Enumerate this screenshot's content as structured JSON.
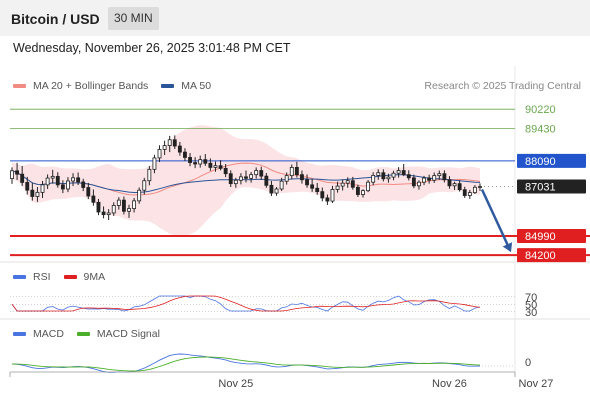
{
  "header": {
    "title": "Bitcoin / USD",
    "timeframe": "30 MIN"
  },
  "datetime": "Wednesday, November 26, 2025 3:01:48 PM CET",
  "credit": "Research © 2025 Trading Central",
  "legend_main": [
    {
      "label": "MA 20 + Bollinger Bands",
      "color": "#f28b82"
    },
    {
      "label": "MA 50",
      "color": "#2a5599"
    }
  ],
  "legend_rsi": [
    {
      "label": "RSI",
      "color": "#4a74e0"
    },
    {
      "label": "9MA",
      "color": "#e02020"
    }
  ],
  "legend_macd": [
    {
      "label": "MACD",
      "color": "#4a74e0"
    },
    {
      "label": "MACD Signal",
      "color": "#4caf2a"
    }
  ],
  "colors": {
    "green_level": "#6aa84f",
    "blue_level": "#2255cc",
    "red_level": "#e02020",
    "candle": "#222222",
    "bollinger": "#fadadd",
    "arrow": "#2f5a9e"
  },
  "chart_data": {
    "type": "candlestick",
    "price_range": [
      84000,
      90600
    ],
    "levels": [
      {
        "value": 90220,
        "label": "90220",
        "kind": "resistance"
      },
      {
        "value": 89430,
        "label": "89430",
        "kind": "resistance"
      },
      {
        "value": 88090,
        "label": "88090",
        "kind": "pivot"
      },
      {
        "value": 87031,
        "label": "87031",
        "kind": "last"
      },
      {
        "value": 84990,
        "label": "84990",
        "kind": "support"
      },
      {
        "value": 84200,
        "label": "84200",
        "kind": "support"
      }
    ],
    "forecast": {
      "from": 87031,
      "to": 84200,
      "direction": "down"
    },
    "candles": [
      [
        87360,
        87820,
        87140,
        87680
      ],
      [
        87680,
        88010,
        87300,
        87540
      ],
      [
        87540,
        87880,
        87050,
        87200
      ],
      [
        87200,
        87430,
        86700,
        86880
      ],
      [
        86880,
        87180,
        86450,
        86620
      ],
      [
        86620,
        87010,
        86400,
        86790
      ],
      [
        86790,
        87260,
        86560,
        87100
      ],
      [
        87100,
        87530,
        86930,
        87380
      ],
      [
        87380,
        87720,
        87150,
        87450
      ],
      [
        87450,
        87620,
        86980,
        87100
      ],
      [
        87100,
        87290,
        86760,
        86930
      ],
      [
        86930,
        87420,
        86800,
        87260
      ],
      [
        87260,
        87580,
        87050,
        87390
      ],
      [
        87390,
        87610,
        87090,
        87220
      ],
      [
        87220,
        87350,
        86840,
        86990
      ],
      [
        86990,
        87180,
        86510,
        86640
      ],
      [
        86640,
        86910,
        86240,
        86380
      ],
      [
        86380,
        86520,
        85850,
        85980
      ],
      [
        85980,
        86210,
        85720,
        85870
      ],
      [
        85870,
        86100,
        85650,
        85940
      ],
      [
        85940,
        86380,
        85820,
        86250
      ],
      [
        86250,
        86590,
        86080,
        86470
      ],
      [
        86470,
        86620,
        85880,
        86010
      ],
      [
        86010,
        86280,
        85740,
        86120
      ],
      [
        86120,
        86560,
        85960,
        86440
      ],
      [
        86440,
        86990,
        86320,
        86880
      ],
      [
        86880,
        87390,
        86700,
        87270
      ],
      [
        87270,
        87880,
        87080,
        87740
      ],
      [
        87740,
        88340,
        87580,
        88210
      ],
      [
        88210,
        88730,
        88040,
        88560
      ],
      [
        88560,
        88920,
        88330,
        88720
      ],
      [
        88720,
        89120,
        88450,
        88960
      ],
      [
        88960,
        89140,
        88580,
        88700
      ],
      [
        88700,
        88870,
        88300,
        88450
      ],
      [
        88450,
        88610,
        88080,
        88230
      ],
      [
        88230,
        88410,
        87870,
        88020
      ],
      [
        88020,
        88240,
        87790,
        87960
      ],
      [
        87960,
        88310,
        87810,
        88140
      ],
      [
        88140,
        88370,
        87880,
        87990
      ],
      [
        87990,
        88190,
        87680,
        87820
      ],
      [
        87820,
        88060,
        87640,
        87890
      ],
      [
        87890,
        88120,
        87700,
        87780
      ],
      [
        87780,
        87960,
        87420,
        87560
      ],
      [
        87560,
        87700,
        87010,
        87150
      ],
      [
        87150,
        87390,
        86980,
        87290
      ],
      [
        87290,
        87580,
        87120,
        87430
      ],
      [
        87430,
        87690,
        87200,
        87370
      ],
      [
        87370,
        87630,
        87190,
        87520
      ],
      [
        87520,
        87820,
        87360,
        87690
      ],
      [
        87690,
        87850,
        87310,
        87460
      ],
      [
        87460,
        87590,
        86980,
        87080
      ],
      [
        87080,
        87260,
        86640,
        86760
      ],
      [
        86760,
        87010,
        86650,
        86930
      ],
      [
        86930,
        87390,
        86850,
        87250
      ],
      [
        87250,
        87610,
        87110,
        87480
      ],
      [
        87480,
        87940,
        87330,
        87820
      ],
      [
        87820,
        88050,
        87400,
        87520
      ],
      [
        87520,
        87690,
        87150,
        87310
      ],
      [
        87310,
        87530,
        86980,
        87100
      ],
      [
        87100,
        87350,
        86810,
        86960
      ],
      [
        86960,
        87180,
        86690,
        86820
      ],
      [
        86820,
        86990,
        86420,
        86560
      ],
      [
        86560,
        86700,
        86270,
        86430
      ],
      [
        86430,
        87060,
        86350,
        86910
      ],
      [
        86910,
        87230,
        86780,
        87050
      ],
      [
        87050,
        87320,
        86870,
        87170
      ],
      [
        87170,
        87410,
        86980,
        87270
      ],
      [
        87270,
        87430,
        86900,
        87000
      ],
      [
        87000,
        87110,
        86600,
        86700
      ],
      [
        86700,
        86920,
        86580,
        86860
      ],
      [
        86860,
        87300,
        86800,
        87210
      ],
      [
        87210,
        87620,
        87080,
        87490
      ],
      [
        87490,
        87740,
        87310,
        87600
      ],
      [
        87600,
        87740,
        87240,
        87350
      ],
      [
        87350,
        87560,
        87190,
        87420
      ],
      [
        87420,
        87680,
        87290,
        87580
      ],
      [
        87580,
        87830,
        87400,
        87690
      ],
      [
        87690,
        87960,
        87460,
        87520
      ],
      [
        87520,
        87700,
        87280,
        87390
      ],
      [
        87390,
        87520,
        86960,
        87060
      ],
      [
        87060,
        87290,
        86900,
        87210
      ],
      [
        87210,
        87470,
        87090,
        87380
      ],
      [
        87380,
        87520,
        87150,
        87290
      ],
      [
        87290,
        87610,
        87180,
        87480
      ],
      [
        87480,
        87690,
        87310,
        87560
      ],
      [
        87560,
        87700,
        87200,
        87310
      ],
      [
        87310,
        87460,
        86940,
        87060
      ],
      [
        87060,
        87230,
        86890,
        87150
      ],
      [
        87150,
        87290,
        86820,
        86900
      ],
      [
        86900,
        87020,
        86560,
        86660
      ],
      [
        86660,
        86890,
        86520,
        86780
      ],
      [
        86780,
        87090,
        86720,
        87000
      ],
      [
        87000,
        87160,
        86850,
        87031
      ]
    ],
    "rsi_levels": [
      70,
      50,
      30
    ],
    "macd_zero_label": "0",
    "x_ticks": [
      {
        "index": 44,
        "label": "Nov 25"
      },
      {
        "index": 86,
        "label": "Nov 26"
      },
      {
        "index": 103,
        "label": "Nov 27"
      }
    ]
  }
}
